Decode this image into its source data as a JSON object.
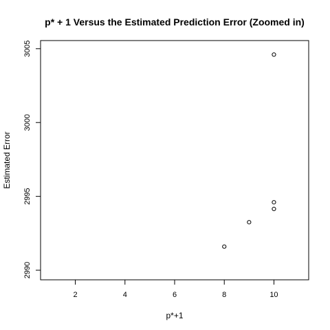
{
  "chart_data": {
    "type": "scatter",
    "title": "p* + 1 Versus the Estimated Prediction Error (Zoomed in)",
    "xlabel": "p*+1",
    "ylabel": "Estimated Error",
    "xlim": [
      0.6,
      11.4
    ],
    "ylim": [
      2989.35,
      3005.55
    ],
    "xticks": [
      2,
      4,
      6,
      8,
      10
    ],
    "yticks": [
      2990,
      2995,
      3000,
      3005
    ],
    "grid": false,
    "points": [
      {
        "x": 8,
        "y": 2991.6
      },
      {
        "x": 9,
        "y": 2993.25
      },
      {
        "x": 10,
        "y": 2994.15
      },
      {
        "x": 10,
        "y": 2994.6
      },
      {
        "x": 10,
        "y": 3004.6
      }
    ]
  }
}
